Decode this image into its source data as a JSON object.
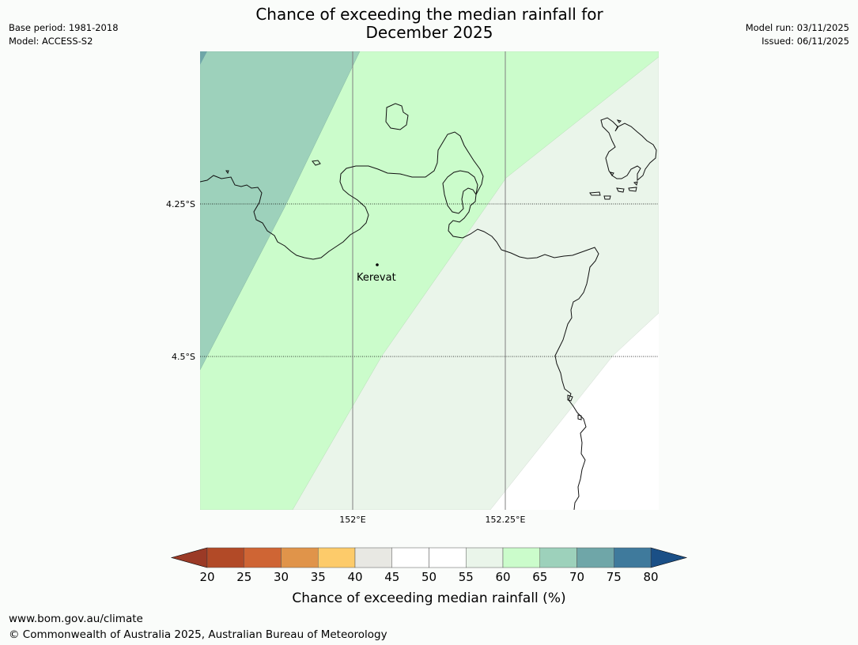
{
  "header": {
    "title_line1": "Chance of exceeding the median rainfall for",
    "title_line2": "December 2025",
    "base_period": "Base period: 1981-2018",
    "model": "Model: ACCESS-S2",
    "model_run": "Model run: 03/11/2025",
    "issued": "Issued: 06/11/2025"
  },
  "map": {
    "place_label": "Kerevat",
    "lat_labels": [
      "4.25°S",
      "4.5°S"
    ],
    "lon_labels": [
      "152°E",
      "152.25°E"
    ],
    "regions": [
      {
        "category": "70-75",
        "color": "#6fa6a8"
      },
      {
        "category": "65-70",
        "color": "#9dd1bb"
      },
      {
        "category": "60-65",
        "color": "#cbfccb"
      },
      {
        "category": "55-60",
        "color": "#eaf5ea"
      },
      {
        "category": "45-55",
        "color": "#ffffff"
      }
    ]
  },
  "colorbar": {
    "ticks": [
      "20",
      "25",
      "30",
      "35",
      "40",
      "45",
      "50",
      "55",
      "60",
      "65",
      "70",
      "75",
      "80"
    ],
    "label": "Chance of exceeding median rainfall (%)",
    "under_color": "#9b3a26",
    "over_color": "#1a4f86",
    "colors": [
      "#b24a27",
      "#cf6534",
      "#e0944a",
      "#fdcb6a",
      "#e8e8e3",
      "#ffffff",
      "#ffffff",
      "#eaf5ea",
      "#cbfccb",
      "#9dd1bb",
      "#6fa6a8",
      "#3f7a9c"
    ]
  },
  "footer": {
    "url": "www.bom.gov.au/climate",
    "copyright": "© Commonwealth of Australia 2025, Australian Bureau of Meteorology"
  }
}
